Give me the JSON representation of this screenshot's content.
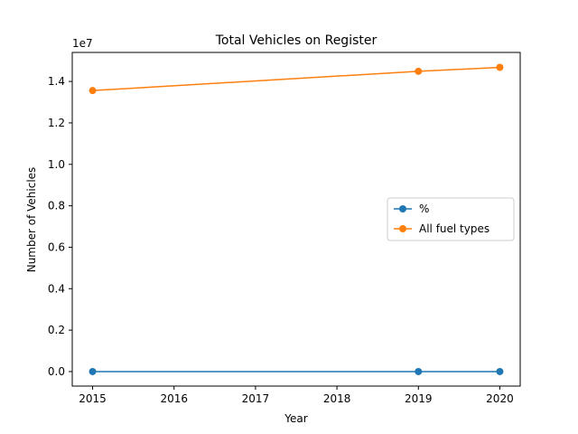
{
  "chart_data": {
    "type": "line",
    "title": "Total Vehicles on Register",
    "xlabel": "Year",
    "ylabel": "Number of Vehicles",
    "y_offset_label": "1e7",
    "x_ticks": [
      "2015",
      "2016",
      "2017",
      "2018",
      "2019",
      "2020"
    ],
    "y_ticks": [
      "0.0",
      "0.2",
      "0.4",
      "0.6",
      "0.8",
      "1.0",
      "1.2",
      "1.4"
    ],
    "xlim": [
      2014.75,
      2020.25
    ],
    "ylim": [
      -700000,
      15400000
    ],
    "grid": false,
    "legend_position": "center-right",
    "x": [
      2015,
      2019,
      2020
    ],
    "series": [
      {
        "name": "%",
        "color": "#1f77b4",
        "values": [
          0,
          0,
          0
        ]
      },
      {
        "name": "All fuel types",
        "color": "#ff7f0e",
        "values": [
          13560000,
          14490000,
          14680000
        ]
      }
    ]
  }
}
